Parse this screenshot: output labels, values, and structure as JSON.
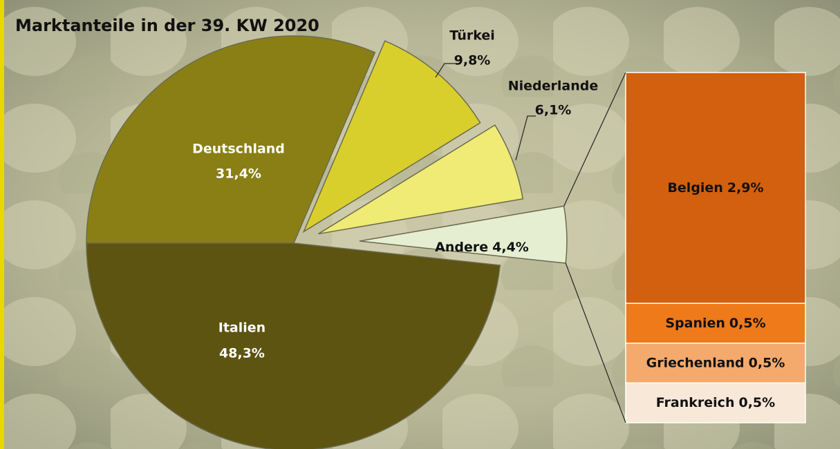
{
  "chart_data": {
    "type": "pie",
    "title": "Marktanteile in der 39. KW 2020",
    "categories": [
      "Deutschland",
      "Türkei",
      "Niederlande",
      "Andere",
      "Italien"
    ],
    "values": [
      31.4,
      9.8,
      6.1,
      4.4,
      48.3
    ],
    "value_labels": [
      "31,4%",
      "9,8%",
      "6,1%",
      "4,4%",
      "48,3%"
    ],
    "colors": [
      "#8a7f14",
      "#d9cf2c",
      "#efeb74",
      "#e6eed2",
      "#5c5410"
    ],
    "breakdown": {
      "type": "bar",
      "categories": [
        "Belgien",
        "Spanien",
        "Griechenland",
        "Frankreich"
      ],
      "values": [
        2.9,
        0.5,
        0.5,
        0.5
      ],
      "value_labels": [
        "2,9%",
        "0,5%",
        "0,5%",
        "0,5%"
      ],
      "colors": [
        "#d2600e",
        "#ee7a1a",
        "#f4aa6c",
        "#f8e8d8"
      ]
    }
  }
}
